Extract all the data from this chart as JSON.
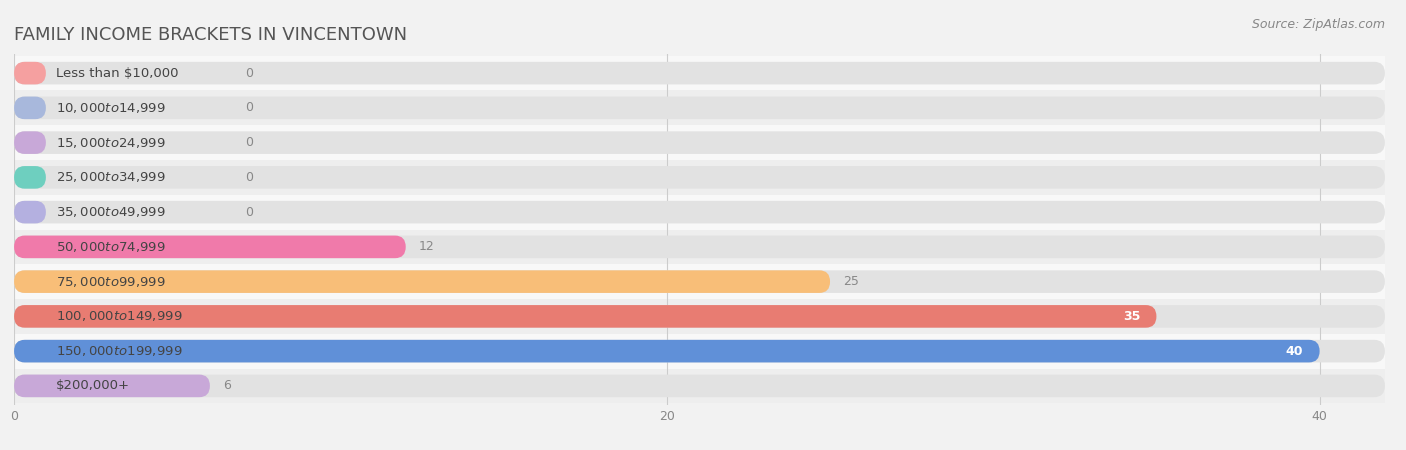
{
  "title": "FAMILY INCOME BRACKETS IN VINCENTOWN",
  "source": "Source: ZipAtlas.com",
  "categories": [
    "Less than $10,000",
    "$10,000 to $14,999",
    "$15,000 to $24,999",
    "$25,000 to $34,999",
    "$35,000 to $49,999",
    "$50,000 to $74,999",
    "$75,000 to $99,999",
    "$100,000 to $149,999",
    "$150,000 to $199,999",
    "$200,000+"
  ],
  "values": [
    0,
    0,
    0,
    0,
    0,
    12,
    25,
    35,
    40,
    6
  ],
  "bar_colors": [
    "#f5a0a0",
    "#a8b8dc",
    "#c8a8d8",
    "#6ecfbf",
    "#b4b0e0",
    "#f07aaa",
    "#f8be78",
    "#e87c72",
    "#6090d8",
    "#c8a8d8"
  ],
  "xlim_data": 42,
  "xticks": [
    0,
    20,
    40
  ],
  "background_color": "#f2f2f2",
  "bar_track_color": "#e2e2e2",
  "title_color": "#555555",
  "label_color": "#444444",
  "value_color": "#888888",
  "value_color_inside": "#ffffff",
  "title_fontsize": 13,
  "label_fontsize": 9.5,
  "value_fontsize": 9,
  "source_fontsize": 9
}
